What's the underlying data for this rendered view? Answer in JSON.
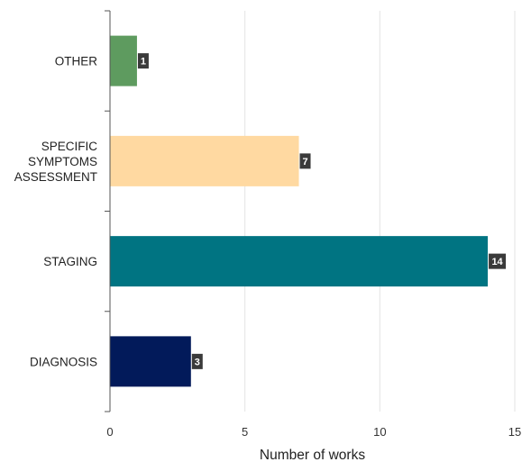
{
  "chart_data": {
    "type": "bar",
    "orientation": "horizontal",
    "categories": [
      "OTHER",
      "SPECIFIC SYMPTOMS ASSESSMENT",
      "STAGING",
      "DIAGNOSIS"
    ],
    "category_label_lines": [
      [
        "OTHER"
      ],
      [
        "SPECIFIC",
        "SYMPTOMS",
        "ASSESSMENT"
      ],
      [
        "STAGING"
      ],
      [
        "DIAGNOSIS"
      ]
    ],
    "values": [
      1,
      7,
      14,
      3
    ],
    "data_labels": [
      "1",
      "7",
      "14",
      "3"
    ],
    "colors": [
      "#5e9b5f",
      "#ffd9a1",
      "#007482",
      "#021a5a"
    ],
    "xlabel": "Number of works",
    "ylabel": "",
    "xlim": [
      0,
      15
    ],
    "xticks": [
      "0",
      "5",
      "10",
      "15"
    ],
    "grid": "vertical",
    "legend": "none"
  }
}
